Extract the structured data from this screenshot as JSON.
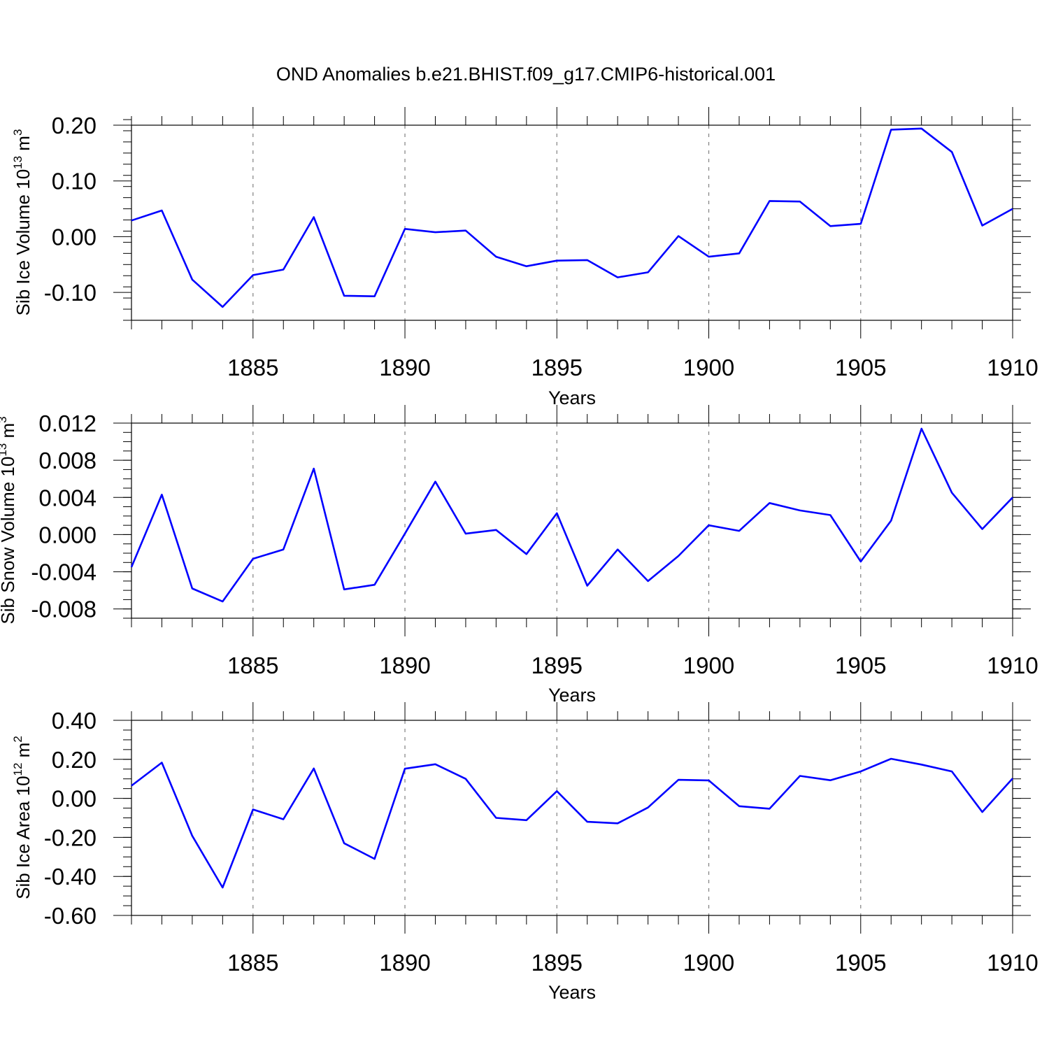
{
  "title": "OND Anomalies b.e21.BHIST.f09_g17.CMIP6-historical.001",
  "line_color": "#0000ff",
  "chart_data": [
    {
      "type": "line",
      "ylabel": "Sib Ice Volume 10",
      "ylabel_sup": "13",
      "ylabel_unit": " m",
      "ylabel_unit_sup": "3",
      "xlabel": "Years",
      "xlim": [
        1881,
        1910
      ],
      "ylim": [
        -0.15,
        0.2
      ],
      "y_ticks": [
        "0.20",
        "0.10",
        "0.00",
        "-0.10"
      ],
      "y_tick_values": [
        0.2,
        0.1,
        0.0,
        -0.1
      ],
      "y_minor_step": 0.02,
      "x_ticks": [
        "1885",
        "1890",
        "1895",
        "1900",
        "1905",
        "1910"
      ],
      "x_tick_values": [
        1885,
        1890,
        1895,
        1900,
        1905,
        1910
      ],
      "x": [
        1881,
        1882,
        1883,
        1884,
        1885,
        1886,
        1887,
        1888,
        1889,
        1890,
        1891,
        1892,
        1893,
        1894,
        1895,
        1896,
        1897,
        1898,
        1899,
        1900,
        1901,
        1902,
        1903,
        1904,
        1905,
        1906,
        1907,
        1908,
        1909,
        1910
      ],
      "series": [
        {
          "name": "Sib Ice Volume",
          "values": [
            0.029,
            0.047,
            -0.077,
            -0.126,
            -0.069,
            -0.059,
            0.035,
            -0.106,
            -0.107,
            0.014,
            0.008,
            0.011,
            -0.036,
            -0.053,
            -0.043,
            -0.042,
            -0.073,
            -0.064,
            0.001,
            -0.036,
            -0.03,
            0.064,
            0.063,
            0.019,
            0.023,
            0.192,
            0.194,
            0.152,
            0.02,
            0.05
          ]
        }
      ]
    },
    {
      "type": "line",
      "ylabel": "Sib Snow Volume 10",
      "ylabel_sup": "13",
      "ylabel_unit": " m",
      "ylabel_unit_sup": "3",
      "xlabel": "Years",
      "xlim": [
        1881,
        1910
      ],
      "ylim": [
        -0.009,
        0.012
      ],
      "y_ticks": [
        "0.012",
        "0.008",
        "0.004",
        "0.000",
        "-0.004",
        "-0.008"
      ],
      "y_tick_values": [
        0.012,
        0.008,
        0.004,
        0.0,
        -0.004,
        -0.008
      ],
      "y_minor_step": 0.001,
      "x_ticks": [
        "1885",
        "1890",
        "1895",
        "1900",
        "1905",
        "1910"
      ],
      "x_tick_values": [
        1885,
        1890,
        1895,
        1900,
        1905,
        1910
      ],
      "x": [
        1881,
        1882,
        1883,
        1884,
        1885,
        1886,
        1887,
        1888,
        1889,
        1890,
        1891,
        1892,
        1893,
        1894,
        1895,
        1896,
        1897,
        1898,
        1899,
        1900,
        1901,
        1902,
        1903,
        1904,
        1905,
        1906,
        1907,
        1908,
        1909,
        1910
      ],
      "series": [
        {
          "name": "Sib Snow Volume",
          "values": [
            -0.0035,
            0.0043,
            -0.0058,
            -0.0072,
            -0.0026,
            -0.0016,
            0.0071,
            -0.0059,
            -0.0054,
            0.0001,
            0.0057,
            0.0001,
            0.0005,
            -0.0021,
            0.0023,
            -0.0055,
            -0.0016,
            -0.005,
            -0.0023,
            0.001,
            0.0004,
            0.0034,
            0.0026,
            0.0021,
            -0.0029,
            0.0015,
            0.0114,
            0.0045,
            0.0006,
            0.004
          ]
        }
      ]
    },
    {
      "type": "line",
      "ylabel": "Sib Ice Area 10",
      "ylabel_sup": "12",
      "ylabel_unit": " m",
      "ylabel_unit_sup": "2",
      "xlabel": "Years",
      "xlim": [
        1881,
        1910
      ],
      "ylim": [
        -0.6,
        0.4
      ],
      "y_ticks": [
        "0.40",
        "0.20",
        "0.00",
        "-0.20",
        "-0.40",
        "-0.60"
      ],
      "y_tick_values": [
        0.4,
        0.2,
        0.0,
        -0.2,
        -0.4,
        -0.6
      ],
      "y_minor_step": 0.05,
      "x_ticks": [
        "1885",
        "1890",
        "1895",
        "1900",
        "1905",
        "1910"
      ],
      "x_tick_values": [
        1885,
        1890,
        1895,
        1900,
        1905,
        1910
      ],
      "x": [
        1881,
        1882,
        1883,
        1884,
        1885,
        1886,
        1887,
        1888,
        1889,
        1890,
        1891,
        1892,
        1893,
        1894,
        1895,
        1896,
        1897,
        1898,
        1899,
        1900,
        1901,
        1902,
        1903,
        1904,
        1905,
        1906,
        1907,
        1908,
        1909,
        1910
      ],
      "series": [
        {
          "name": "Sib Ice Area",
          "values": [
            0.065,
            0.183,
            -0.192,
            -0.457,
            -0.057,
            -0.107,
            0.153,
            -0.23,
            -0.31,
            0.152,
            0.175,
            0.1,
            -0.1,
            -0.112,
            0.037,
            -0.12,
            -0.128,
            -0.047,
            0.095,
            0.092,
            -0.04,
            -0.053,
            0.115,
            0.093,
            0.138,
            0.203,
            0.173,
            0.138,
            -0.07,
            0.102
          ]
        }
      ]
    }
  ]
}
